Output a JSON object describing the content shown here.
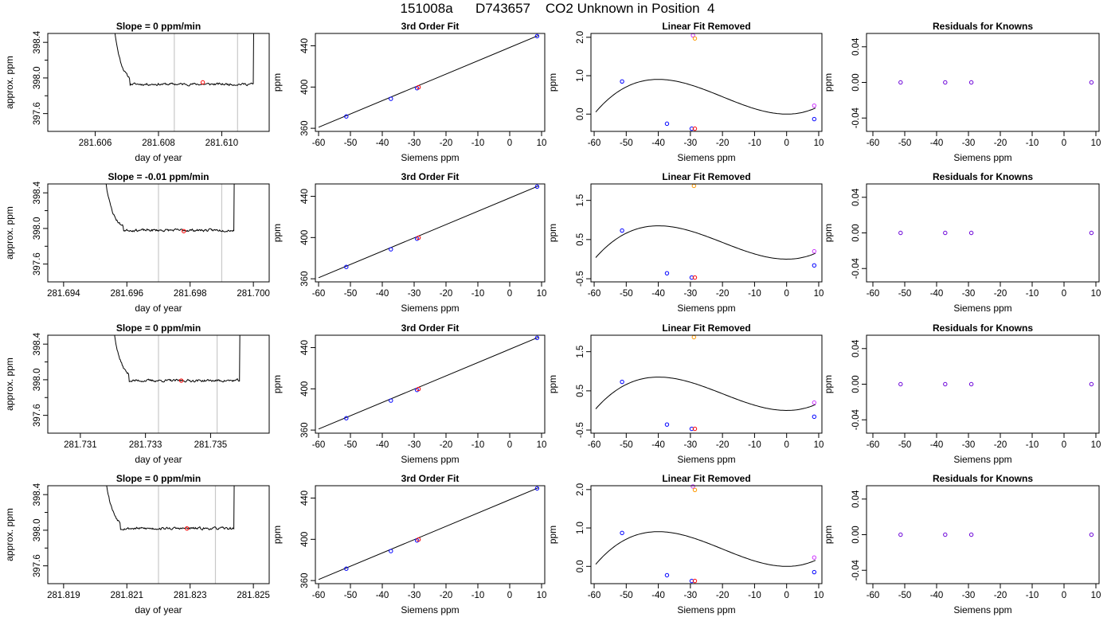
{
  "page": {
    "title": "151008a      D743657    CO2 Unknown in Position  4"
  },
  "chart_data": [
    {
      "type": "line",
      "panel": "timeseries",
      "title": "Slope =  0  ppm/min",
      "xlabel": "day of year",
      "ylabel": "approx. ppm",
      "xlim": [
        281.6045,
        281.6115
      ],
      "ylim": [
        397.4,
        398.5
      ],
      "xticks": [
        "281.606",
        "281.608",
        "281.610"
      ],
      "xtick_values": [
        281.606,
        281.608,
        281.61
      ],
      "yticks": [
        "397.6",
        "398.0",
        "398.4"
      ],
      "ytick_values": [
        397.6,
        398.0,
        398.4
      ],
      "vlines": [
        281.6085,
        281.6105
      ],
      "trace": {
        "x_start": 281.6063,
        "x_end": 281.6113,
        "rise_start": 281.6067,
        "rise_end": 281.611,
        "upper_level": 398.6,
        "plateau": 397.93,
        "noise": 0.01,
        "seed": 11
      },
      "marker": {
        "x": 281.6094,
        "y": 397.95,
        "color": "#ff0000"
      }
    },
    {
      "type": "scatter",
      "panel": "fit",
      "title": "3rd Order Fit",
      "xlabel": "Siemens ppm",
      "ylabel": "ppm",
      "xlim": [
        -61,
        11
      ],
      "ylim": [
        357,
        452
      ],
      "xticks": [
        "-60",
        "-50",
        "-40",
        "-30",
        "-20",
        "-10",
        "0",
        "10"
      ],
      "xtick_values": [
        -60,
        -50,
        -40,
        -30,
        -20,
        -10,
        0,
        10
      ],
      "yticks": [
        "360",
        "400",
        "440"
      ],
      "ytick_values": [
        360,
        400,
        440
      ],
      "line": [
        [
          -60,
          361
        ],
        [
          9,
          450
        ]
      ],
      "points": [
        {
          "x": -51.3,
          "y": 371.5,
          "color": "#0000ff"
        },
        {
          "x": -37.3,
          "y": 388.6,
          "color": "#0000ff"
        },
        {
          "x": -29.1,
          "y": 398.9,
          "color": "#0000ff"
        },
        {
          "x": -28.6,
          "y": 399.8,
          "color": "#ff0000"
        },
        {
          "x": 8.6,
          "y": 449.4,
          "color": "#0000ff"
        }
      ]
    },
    {
      "type": "scatter",
      "panel": "linear_removed",
      "title": "Linear Fit Removed",
      "xlabel": "Siemens ppm",
      "ylabel": "ppm",
      "xlim": [
        -61,
        11
      ],
      "ylim": [
        -0.45,
        2.1
      ],
      "xticks": [
        "-60",
        "-50",
        "-40",
        "-30",
        "-20",
        "-10",
        "0",
        "10"
      ],
      "xtick_values": [
        -60,
        -50,
        -40,
        -30,
        -20,
        -10,
        0,
        10
      ],
      "yticks": [
        "0.0",
        "1.0",
        "2.0"
      ],
      "ytick_values": [
        0,
        1,
        2
      ],
      "curve": {
        "a": 2.82e-05,
        "b": 0.001693,
        "d": 0,
        "x_from": -59.5,
        "x_to": 9
      },
      "points": [
        {
          "x": -51.3,
          "y": 0.85,
          "color": "#0000ff"
        },
        {
          "x": -37.3,
          "y": -0.25,
          "color": "#0000ff"
        },
        {
          "x": -29.6,
          "y": -0.38,
          "color": "#0000ff"
        },
        {
          "x": -28.6,
          "y": -0.38,
          "color": "#ff0000"
        },
        {
          "x": -29.2,
          "y": 2.05,
          "color": "#cc33ff"
        },
        {
          "x": -28.6,
          "y": 1.97,
          "color": "#ff9900"
        },
        {
          "x": 8.6,
          "y": 0.22,
          "color": "#cc33ff"
        },
        {
          "x": 8.6,
          "y": -0.13,
          "color": "#0000ff"
        }
      ]
    },
    {
      "type": "scatter",
      "panel": "residuals",
      "title": "Residuals for Knowns",
      "xlabel": "Siemens ppm",
      "ylabel": "ppm",
      "xlim": [
        -62,
        11
      ],
      "ylim": [
        -0.055,
        0.055
      ],
      "xticks": [
        "-60",
        "-50",
        "-40",
        "-30",
        "-20",
        "-10",
        "0",
        "10"
      ],
      "xtick_values": [
        -60,
        -50,
        -40,
        -30,
        -20,
        -10,
        0,
        10
      ],
      "yticks": [
        "-0.04",
        "0.00",
        "0.04"
      ],
      "ytick_values": [
        -0.04,
        0,
        0.04
      ],
      "points": [
        {
          "x": -51.3,
          "y": 0,
          "color": "#6a00d8"
        },
        {
          "x": -37.3,
          "y": 0,
          "color": "#6a00d8"
        },
        {
          "x": -29.1,
          "y": 0,
          "color": "#6a00d8"
        },
        {
          "x": 8.6,
          "y": 0,
          "color": "#6a00d8"
        }
      ]
    },
    {
      "type": "line",
      "panel": "timeseries",
      "title": "Slope =  -0.01  ppm/min",
      "xlabel": "day of year",
      "ylabel": "approx. ppm",
      "xlim": [
        281.6935,
        281.7005
      ],
      "ylim": [
        397.4,
        398.5
      ],
      "xticks": [
        "281.694",
        "281.696",
        "281.698",
        "281.700"
      ],
      "xtick_values": [
        281.694,
        281.696,
        281.698,
        281.7
      ],
      "yticks": [
        "397.6",
        "398.0",
        "398.4"
      ],
      "ytick_values": [
        397.6,
        398.0,
        398.4
      ],
      "vlines": [
        281.697,
        281.699
      ],
      "trace": {
        "x_start": 281.695,
        "x_end": 281.6995,
        "rise_start": 281.6955,
        "rise_end": 281.6994,
        "upper_level": 398.6,
        "plateau": 397.98,
        "noise": 0.01,
        "seed": 23
      },
      "marker": {
        "x": 281.6978,
        "y": 397.97,
        "color": "#ff0000"
      }
    },
    {
      "type": "scatter",
      "panel": "fit",
      "title": "3rd Order Fit",
      "xlabel": "Siemens ppm",
      "ylabel": "ppm",
      "xlim": [
        -61,
        11
      ],
      "ylim": [
        357,
        452
      ],
      "xticks": [
        "-60",
        "-50",
        "-40",
        "-30",
        "-20",
        "-10",
        "0",
        "10"
      ],
      "xtick_values": [
        -60,
        -50,
        -40,
        -30,
        -20,
        -10,
        0,
        10
      ],
      "yticks": [
        "360",
        "400",
        "440"
      ],
      "ytick_values": [
        360,
        400,
        440
      ],
      "line": [
        [
          -60,
          361
        ],
        [
          9,
          450
        ]
      ],
      "points": [
        {
          "x": -51.3,
          "y": 371.5,
          "color": "#0000ff"
        },
        {
          "x": -37.3,
          "y": 388.6,
          "color": "#0000ff"
        },
        {
          "x": -29.1,
          "y": 398.9,
          "color": "#0000ff"
        },
        {
          "x": -28.6,
          "y": 399.8,
          "color": "#ff0000"
        },
        {
          "x": 8.6,
          "y": 449.4,
          "color": "#0000ff"
        }
      ]
    },
    {
      "type": "scatter",
      "panel": "linear_removed",
      "title": "Linear Fit Removed",
      "xlabel": "Siemens ppm",
      "ylabel": "ppm",
      "xlim": [
        -61,
        11
      ],
      "ylim": [
        -0.58,
        1.92
      ],
      "xticks": [
        "-60",
        "-50",
        "-40",
        "-30",
        "-20",
        "-10",
        "0",
        "10"
      ],
      "xtick_values": [
        -60,
        -50,
        -40,
        -30,
        -20,
        -10,
        0,
        10
      ],
      "yticks": [
        "-0.5",
        "0.5",
        "1.5"
      ],
      "ytick_values": [
        -0.5,
        0.5,
        1.5
      ],
      "curve": {
        "a": 2.67e-05,
        "b": 0.0016,
        "d": 0,
        "x_from": -59.5,
        "x_to": 9
      },
      "points": [
        {
          "x": -51.3,
          "y": 0.73,
          "color": "#0000ff"
        },
        {
          "x": -37.3,
          "y": -0.36,
          "color": "#0000ff"
        },
        {
          "x": -29.6,
          "y": -0.47,
          "color": "#0000ff"
        },
        {
          "x": -28.6,
          "y": -0.47,
          "color": "#ff0000"
        },
        {
          "x": -28.9,
          "y": 1.87,
          "color": "#ff9900"
        },
        {
          "x": 8.6,
          "y": 0.2,
          "color": "#cc33ff"
        },
        {
          "x": 8.6,
          "y": -0.16,
          "color": "#0000ff"
        }
      ]
    },
    {
      "type": "scatter",
      "panel": "residuals",
      "title": "Residuals for Knowns",
      "xlabel": "Siemens ppm",
      "ylabel": "ppm",
      "xlim": [
        -62,
        11
      ],
      "ylim": [
        -0.055,
        0.055
      ],
      "xticks": [
        "-60",
        "-50",
        "-40",
        "-30",
        "-20",
        "-10",
        "0",
        "10"
      ],
      "xtick_values": [
        -60,
        -50,
        -40,
        -30,
        -20,
        -10,
        0,
        10
      ],
      "yticks": [
        "-0.04",
        "0.00",
        "0.04"
      ],
      "ytick_values": [
        -0.04,
        0,
        0.04
      ],
      "points": [
        {
          "x": -51.3,
          "y": 0,
          "color": "#6a00d8"
        },
        {
          "x": -37.3,
          "y": 0,
          "color": "#6a00d8"
        },
        {
          "x": -29.1,
          "y": 0,
          "color": "#6a00d8"
        },
        {
          "x": 8.6,
          "y": 0,
          "color": "#6a00d8"
        }
      ]
    },
    {
      "type": "line",
      "panel": "timeseries",
      "title": "Slope =  0  ppm/min",
      "xlabel": "day of year",
      "ylabel": "approx. ppm",
      "xlim": [
        281.73,
        281.7368
      ],
      "ylim": [
        397.4,
        398.5
      ],
      "xticks": [
        "281.731",
        "281.733",
        "281.735"
      ],
      "xtick_values": [
        281.731,
        281.733,
        281.735
      ],
      "yticks": [
        "397.6",
        "398.0",
        "398.4"
      ],
      "ytick_values": [
        397.6,
        398.0,
        398.4
      ],
      "vlines": [
        281.7334,
        281.7352
      ],
      "trace": {
        "x_start": 281.7317,
        "x_end": 281.7362,
        "rise_start": 281.7321,
        "rise_end": 281.7359,
        "upper_level": 398.6,
        "plateau": 397.99,
        "noise": 0.01,
        "seed": 37
      },
      "marker": {
        "x": 281.7341,
        "y": 397.99,
        "color": "#ff0000"
      }
    },
    {
      "type": "scatter",
      "panel": "fit",
      "title": "3rd Order Fit",
      "xlabel": "Siemens ppm",
      "ylabel": "ppm",
      "xlim": [
        -61,
        11
      ],
      "ylim": [
        357,
        452
      ],
      "xticks": [
        "-60",
        "-50",
        "-40",
        "-30",
        "-20",
        "-10",
        "0",
        "10"
      ],
      "xtick_values": [
        -60,
        -50,
        -40,
        -30,
        -20,
        -10,
        0,
        10
      ],
      "yticks": [
        "360",
        "400",
        "440"
      ],
      "ytick_values": [
        360,
        400,
        440
      ],
      "line": [
        [
          -60,
          361
        ],
        [
          9,
          450
        ]
      ],
      "points": [
        {
          "x": -51.3,
          "y": 371.5,
          "color": "#0000ff"
        },
        {
          "x": -37.3,
          "y": 388.6,
          "color": "#0000ff"
        },
        {
          "x": -29.1,
          "y": 398.9,
          "color": "#0000ff"
        },
        {
          "x": -28.6,
          "y": 399.8,
          "color": "#ff0000"
        },
        {
          "x": 8.6,
          "y": 449.4,
          "color": "#0000ff"
        }
      ]
    },
    {
      "type": "scatter",
      "panel": "linear_removed",
      "title": "Linear Fit Removed",
      "xlabel": "Siemens ppm",
      "ylabel": "ppm",
      "xlim": [
        -61,
        11
      ],
      "ylim": [
        -0.58,
        1.92
      ],
      "xticks": [
        "-60",
        "-50",
        "-40",
        "-30",
        "-20",
        "-10",
        "0",
        "10"
      ],
      "xtick_values": [
        -60,
        -50,
        -40,
        -30,
        -20,
        -10,
        0,
        10
      ],
      "yticks": [
        "-0.5",
        "0.5",
        "1.5"
      ],
      "ytick_values": [
        -0.5,
        0.5,
        1.5
      ],
      "curve": {
        "a": 2.67e-05,
        "b": 0.0016,
        "d": 0,
        "x_from": -59.5,
        "x_to": 9
      },
      "points": [
        {
          "x": -51.3,
          "y": 0.73,
          "color": "#0000ff"
        },
        {
          "x": -37.3,
          "y": -0.36,
          "color": "#0000ff"
        },
        {
          "x": -29.6,
          "y": -0.47,
          "color": "#0000ff"
        },
        {
          "x": -28.6,
          "y": -0.47,
          "color": "#ff0000"
        },
        {
          "x": -28.9,
          "y": 1.87,
          "color": "#ff9900"
        },
        {
          "x": 8.6,
          "y": 0.2,
          "color": "#cc33ff"
        },
        {
          "x": 8.6,
          "y": -0.16,
          "color": "#0000ff"
        }
      ]
    },
    {
      "type": "scatter",
      "panel": "residuals",
      "title": "Residuals for Knowns",
      "xlabel": "Siemens ppm",
      "ylabel": "ppm",
      "xlim": [
        -62,
        11
      ],
      "ylim": [
        -0.055,
        0.055
      ],
      "xticks": [
        "-60",
        "-50",
        "-40",
        "-30",
        "-20",
        "-10",
        "0",
        "10"
      ],
      "xtick_values": [
        -60,
        -50,
        -40,
        -30,
        -20,
        -10,
        0,
        10
      ],
      "yticks": [
        "-0.04",
        "0.00",
        "0.04"
      ],
      "ytick_values": [
        -0.04,
        0,
        0.04
      ],
      "points": [
        {
          "x": -51.3,
          "y": 0,
          "color": "#6a00d8"
        },
        {
          "x": -37.3,
          "y": 0,
          "color": "#6a00d8"
        },
        {
          "x": -29.1,
          "y": 0,
          "color": "#6a00d8"
        },
        {
          "x": 8.6,
          "y": 0,
          "color": "#6a00d8"
        }
      ]
    },
    {
      "type": "line",
      "panel": "timeseries",
      "title": "Slope =  0  ppm/min",
      "xlabel": "day of year",
      "ylabel": "approx. ppm",
      "xlim": [
        281.8185,
        281.8255
      ],
      "ylim": [
        397.4,
        398.5
      ],
      "xticks": [
        "281.819",
        "281.821",
        "281.823",
        "281.825"
      ],
      "xtick_values": [
        281.819,
        281.821,
        281.823,
        281.825
      ],
      "yticks": [
        "397.6",
        "398.0",
        "398.4"
      ],
      "ytick_values": [
        397.6,
        398.0,
        398.4
      ],
      "vlines": [
        281.822,
        281.8238
      ],
      "trace": {
        "x_start": 281.82,
        "x_end": 281.8245,
        "rise_start": 281.8204,
        "rise_end": 281.8244,
        "upper_level": 398.6,
        "plateau": 398.02,
        "noise": 0.01,
        "seed": 53
      },
      "marker": {
        "x": 281.8229,
        "y": 398.02,
        "color": "#ff0000"
      }
    },
    {
      "type": "scatter",
      "panel": "fit",
      "title": "3rd Order Fit",
      "xlabel": "Siemens ppm",
      "ylabel": "ppm",
      "xlim": [
        -61,
        11
      ],
      "ylim": [
        357,
        452
      ],
      "xticks": [
        "-60",
        "-50",
        "-40",
        "-30",
        "-20",
        "-10",
        "0",
        "10"
      ],
      "xtick_values": [
        -60,
        -50,
        -40,
        -30,
        -20,
        -10,
        0,
        10
      ],
      "yticks": [
        "360",
        "400",
        "440"
      ],
      "ytick_values": [
        360,
        400,
        440
      ],
      "line": [
        [
          -60,
          361
        ],
        [
          9,
          450
        ]
      ],
      "points": [
        {
          "x": -51.3,
          "y": 371.5,
          "color": "#0000ff"
        },
        {
          "x": -37.3,
          "y": 388.6,
          "color": "#0000ff"
        },
        {
          "x": -29.1,
          "y": 398.9,
          "color": "#0000ff"
        },
        {
          "x": -28.6,
          "y": 399.8,
          "color": "#ff0000"
        },
        {
          "x": 8.6,
          "y": 449.4,
          "color": "#0000ff"
        }
      ]
    },
    {
      "type": "scatter",
      "panel": "linear_removed",
      "title": "Linear Fit Removed",
      "xlabel": "Siemens ppm",
      "ylabel": "ppm",
      "xlim": [
        -61,
        11
      ],
      "ylim": [
        -0.45,
        2.1
      ],
      "xticks": [
        "-60",
        "-50",
        "-40",
        "-30",
        "-20",
        "-10",
        "0",
        "10"
      ],
      "xtick_values": [
        -60,
        -50,
        -40,
        -30,
        -20,
        -10,
        0,
        10
      ],
      "yticks": [
        "0.0",
        "1.0",
        "2.0"
      ],
      "ytick_values": [
        0,
        1,
        2
      ],
      "curve": {
        "a": 2.82e-05,
        "b": 0.001693,
        "d": 0,
        "x_from": -59.5,
        "x_to": 9
      },
      "points": [
        {
          "x": -51.3,
          "y": 0.87,
          "color": "#0000ff"
        },
        {
          "x": -37.3,
          "y": -0.23,
          "color": "#0000ff"
        },
        {
          "x": -29.6,
          "y": -0.38,
          "color": "#0000ff"
        },
        {
          "x": -28.6,
          "y": -0.38,
          "color": "#ff0000"
        },
        {
          "x": -29.2,
          "y": 2.08,
          "color": "#cc33ff"
        },
        {
          "x": -28.6,
          "y": 1.99,
          "color": "#ff9900"
        },
        {
          "x": 8.6,
          "y": 0.23,
          "color": "#cc33ff"
        },
        {
          "x": 8.6,
          "y": -0.15,
          "color": "#0000ff"
        }
      ]
    },
    {
      "type": "scatter",
      "panel": "residuals",
      "title": "Residuals for Knowns",
      "xlabel": "Siemens ppm",
      "ylabel": "ppm",
      "xlim": [
        -62,
        11
      ],
      "ylim": [
        -0.055,
        0.055
      ],
      "xticks": [
        "-60",
        "-50",
        "-40",
        "-30",
        "-20",
        "-10",
        "0",
        "10"
      ],
      "xtick_values": [
        -60,
        -50,
        -40,
        -30,
        -20,
        -10,
        0,
        10
      ],
      "yticks": [
        "-0.04",
        "0.00",
        "0.04"
      ],
      "ytick_values": [
        -0.04,
        0,
        0.04
      ],
      "points": [
        {
          "x": -51.3,
          "y": 0,
          "color": "#6a00d8"
        },
        {
          "x": -37.3,
          "y": 0,
          "color": "#6a00d8"
        },
        {
          "x": -29.1,
          "y": 0,
          "color": "#6a00d8"
        },
        {
          "x": 8.6,
          "y": 0,
          "color": "#6a00d8"
        }
      ]
    }
  ]
}
